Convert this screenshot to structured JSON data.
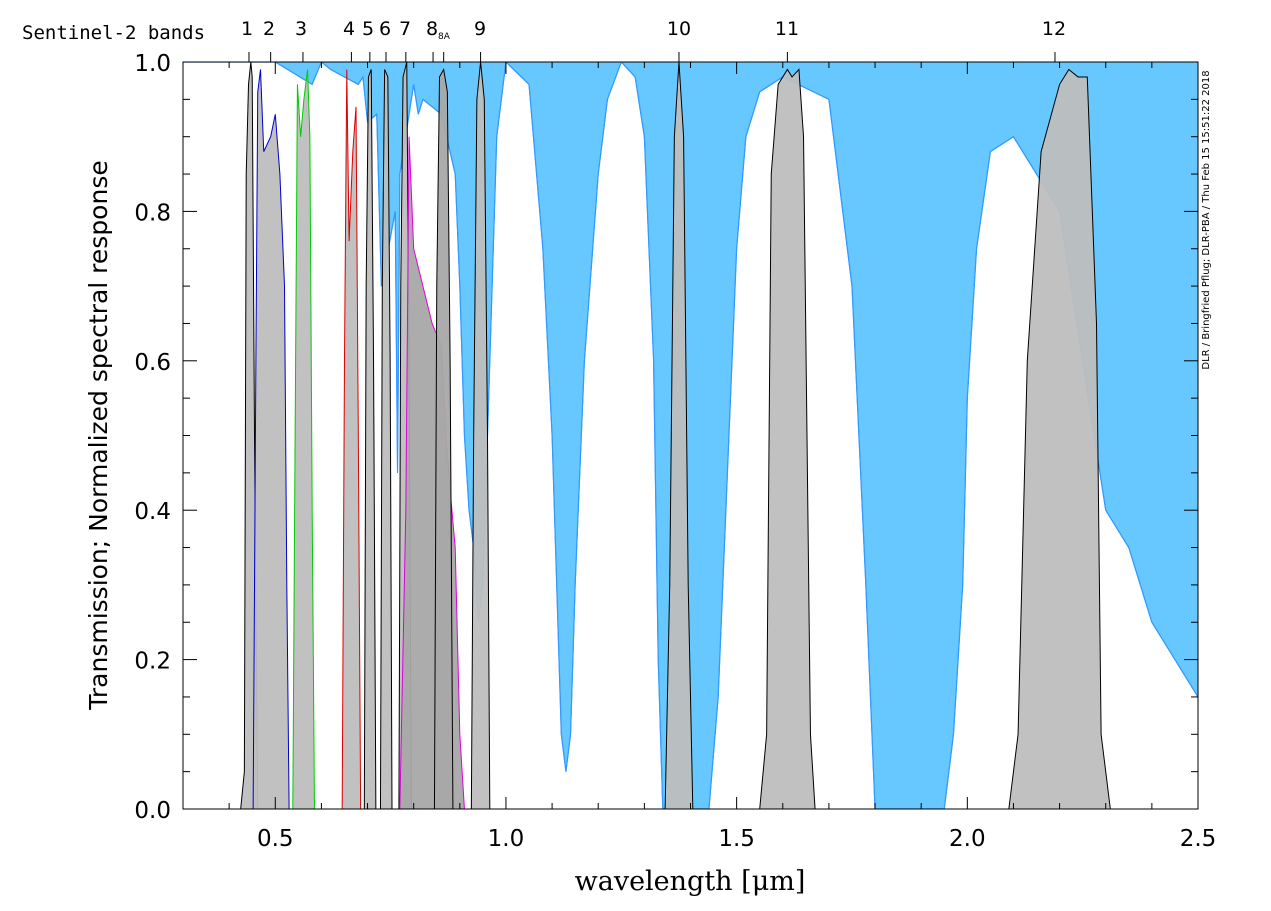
{
  "chart_data": {
    "type": "area",
    "xlabel": "wavelength  [μm]",
    "ylabel": "Transmission; Normalized spectral response",
    "top_axis_title": "Sentinel-2 bands",
    "credit": "DLR / Bringfried Pflug; DLR-PBA / Thu Feb 15 15:51:22 2018",
    "xlim": [
      0.3,
      2.5
    ],
    "ylim": [
      0.0,
      1.0
    ],
    "x_ticks": [
      "0.5",
      "1.0",
      "1.5",
      "2.0",
      "2.5"
    ],
    "x_tick_values": [
      0.5,
      1.0,
      1.5,
      2.0,
      2.5
    ],
    "y_ticks": [
      "0.0",
      "0.2",
      "0.4",
      "0.6",
      "0.8",
      "1.0"
    ],
    "y_tick_values": [
      0.0,
      0.2,
      0.4,
      0.6,
      0.8,
      1.0
    ],
    "grid": false,
    "colors": {
      "transmission_fill": "#66c8ff",
      "transmission_line": "#3399ff",
      "band_fill": "#bebebe",
      "band_fill_dark": "#a8a8a8",
      "band_outline": "#000000",
      "band2_outline": "#0000cc",
      "band3_outline": "#00cc00",
      "band4_outline": "#dd0000",
      "band8_outline": "#dd00dd"
    },
    "band_labels": [
      {
        "label": "1",
        "center": 0.443
      },
      {
        "label": "2",
        "center": 0.49
      },
      {
        "label": "3",
        "center": 0.56
      },
      {
        "label": "4",
        "center": 0.665
      },
      {
        "label": "5",
        "center": 0.705
      },
      {
        "label": "6",
        "center": 0.74
      },
      {
        "label": "7",
        "center": 0.783
      },
      {
        "label": "8",
        "center": 0.842
      },
      {
        "label": "8A",
        "center": 0.865
      },
      {
        "label": "9",
        "center": 0.945
      },
      {
        "label": "10",
        "center": 1.375
      },
      {
        "label": "11",
        "center": 1.61
      },
      {
        "label": "12",
        "center": 2.19
      }
    ],
    "series": [
      {
        "kind": "transmission",
        "x": [
          0.3,
          0.5,
          0.58,
          0.6,
          0.62,
          0.68,
          0.69,
          0.7,
          0.72,
          0.73,
          0.76,
          0.765,
          0.77,
          0.8,
          0.81,
          0.82,
          0.86,
          0.89,
          0.9,
          0.91,
          0.92,
          0.93,
          0.94,
          0.95,
          0.96,
          0.97,
          0.98,
          1.0,
          1.05,
          1.08,
          1.1,
          1.11,
          1.12,
          1.13,
          1.14,
          1.15,
          1.17,
          1.2,
          1.22,
          1.25,
          1.28,
          1.3,
          1.32,
          1.33,
          1.34,
          1.35,
          1.36,
          1.38,
          1.4,
          1.42,
          1.44,
          1.46,
          1.48,
          1.5,
          1.52,
          1.55,
          1.6,
          1.7,
          1.75,
          1.78,
          1.8,
          1.82,
          1.84,
          1.86,
          1.9,
          1.95,
          1.97,
          1.99,
          2.0,
          2.02,
          2.05,
          2.1,
          2.2,
          2.25,
          2.3,
          2.35,
          2.4,
          2.45,
          2.5
        ],
        "y": [
          1.0,
          1.0,
          0.97,
          1.0,
          0.99,
          0.97,
          0.98,
          0.92,
          0.93,
          0.7,
          0.8,
          0.45,
          0.85,
          0.97,
          0.93,
          0.95,
          0.93,
          0.85,
          0.7,
          0.5,
          0.4,
          0.35,
          0.25,
          0.3,
          0.5,
          0.7,
          0.9,
          1.0,
          0.97,
          0.75,
          0.5,
          0.3,
          0.1,
          0.05,
          0.1,
          0.3,
          0.6,
          0.85,
          0.95,
          1.0,
          0.98,
          0.9,
          0.6,
          0.2,
          0.0,
          0.0,
          0.0,
          0.0,
          0.0,
          0.0,
          0.0,
          0.15,
          0.45,
          0.75,
          0.9,
          0.96,
          0.98,
          0.95,
          0.7,
          0.3,
          0.0,
          0.0,
          0.0,
          0.0,
          0.0,
          0.0,
          0.1,
          0.3,
          0.55,
          0.75,
          0.88,
          0.9,
          0.8,
          0.6,
          0.4,
          0.35,
          0.25,
          0.2,
          0.15
        ]
      },
      {
        "kind": "band",
        "label": "1",
        "outline": "#000000",
        "x": [
          0.425,
          0.433,
          0.437,
          0.442,
          0.447,
          0.45,
          0.455,
          0.462
        ],
        "y": [
          0.0,
          0.05,
          0.85,
          0.97,
          1.0,
          0.98,
          0.5,
          0.0
        ]
      },
      {
        "kind": "band",
        "label": "2",
        "outline": "#0000cc",
        "x": [
          0.452,
          0.458,
          0.462,
          0.468,
          0.475,
          0.49,
          0.5,
          0.51,
          0.52,
          0.525,
          0.53
        ],
        "y": [
          0.0,
          0.6,
          0.96,
          0.99,
          0.88,
          0.9,
          0.93,
          0.85,
          0.7,
          0.3,
          0.0
        ]
      },
      {
        "kind": "band",
        "label": "3",
        "outline": "#00cc00",
        "x": [
          0.538,
          0.543,
          0.548,
          0.555,
          0.562,
          0.57,
          0.575,
          0.58,
          0.585
        ],
        "y": [
          0.0,
          0.5,
          0.97,
          0.9,
          0.95,
          0.99,
          0.9,
          0.4,
          0.0
        ]
      },
      {
        "kind": "band",
        "label": "4",
        "outline": "#dd0000",
        "x": [
          0.645,
          0.65,
          0.655,
          0.66,
          0.668,
          0.675,
          0.68,
          0.685
        ],
        "y": [
          0.0,
          0.6,
          0.99,
          0.76,
          0.88,
          0.94,
          0.5,
          0.0
        ]
      },
      {
        "kind": "band",
        "label": "5",
        "outline": "#000000",
        "x": [
          0.693,
          0.697,
          0.702,
          0.708,
          0.713,
          0.718
        ],
        "y": [
          0.0,
          0.7,
          0.98,
          0.99,
          0.6,
          0.0
        ]
      },
      {
        "kind": "band",
        "label": "6",
        "outline": "#000000",
        "x": [
          0.728,
          0.732,
          0.737,
          0.744,
          0.749,
          0.753
        ],
        "y": [
          0.0,
          0.7,
          0.99,
          0.98,
          0.6,
          0.0
        ]
      },
      {
        "kind": "band",
        "label": "7",
        "outline": "#000000",
        "x": [
          0.768,
          0.772,
          0.777,
          0.785,
          0.79,
          0.795
        ],
        "y": [
          0.0,
          0.7,
          0.98,
          1.0,
          0.6,
          0.0
        ]
      },
      {
        "kind": "band",
        "label": "8",
        "outline": "#dd00dd",
        "x": [
          0.77,
          0.783,
          0.79,
          0.8,
          0.82,
          0.84,
          0.86,
          0.87,
          0.88,
          0.89,
          0.9,
          0.91
        ],
        "y": [
          0.0,
          0.4,
          0.9,
          0.75,
          0.7,
          0.65,
          0.62,
          0.5,
          0.42,
          0.35,
          0.1,
          0.0
        ]
      },
      {
        "kind": "band",
        "label": "8A",
        "outline": "#000000",
        "x": [
          0.845,
          0.85,
          0.856,
          0.865,
          0.873,
          0.879,
          0.885
        ],
        "y": [
          0.0,
          0.7,
          0.98,
          0.99,
          0.96,
          0.6,
          0.0
        ]
      },
      {
        "kind": "band",
        "label": "9",
        "outline": "#000000",
        "x": [
          0.925,
          0.93,
          0.937,
          0.945,
          0.953,
          0.96,
          0.965
        ],
        "y": [
          0.0,
          0.5,
          0.95,
          1.0,
          0.95,
          0.5,
          0.0
        ]
      },
      {
        "kind": "band",
        "label": "10",
        "outline": "#000000",
        "x": [
          1.345,
          1.355,
          1.365,
          1.375,
          1.385,
          1.395,
          1.405
        ],
        "y": [
          0.0,
          0.3,
          0.9,
          1.0,
          0.9,
          0.3,
          0.0
        ]
      },
      {
        "kind": "band",
        "label": "11",
        "outline": "#000000",
        "x": [
          1.55,
          1.565,
          1.575,
          1.59,
          1.6,
          1.61,
          1.62,
          1.635,
          1.645,
          1.66,
          1.67
        ],
        "y": [
          0.0,
          0.1,
          0.85,
          0.97,
          0.98,
          0.99,
          0.98,
          0.99,
          0.9,
          0.1,
          0.0
        ]
      },
      {
        "kind": "band",
        "label": "12",
        "outline": "#000000",
        "x": [
          2.09,
          2.11,
          2.13,
          2.16,
          2.2,
          2.22,
          2.24,
          2.26,
          2.28,
          2.29,
          2.31
        ],
        "y": [
          0.0,
          0.1,
          0.6,
          0.88,
          0.97,
          0.99,
          0.98,
          0.98,
          0.65,
          0.1,
          0.0
        ]
      }
    ]
  }
}
